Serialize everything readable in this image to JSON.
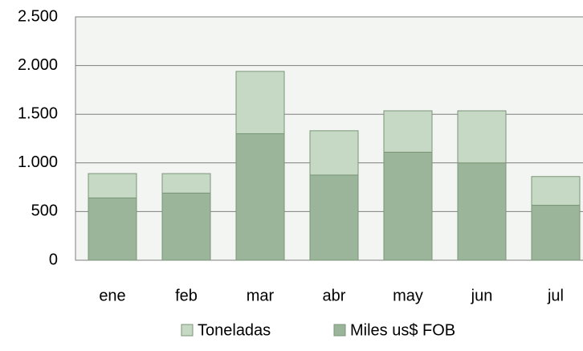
{
  "chart_data": {
    "type": "stacked_bar",
    "categories": [
      "ene",
      "feb",
      "mar",
      "abr",
      "may",
      "jun",
      "jul"
    ],
    "series": [
      {
        "name": "Toneladas",
        "color": "#c6d9c4",
        "values": [
          250,
          200,
          640,
          455,
          425,
          535,
          295
        ]
      },
      {
        "name": "Miles us$ FOB",
        "color": "#9bb59a",
        "values": [
          640,
          690,
          1300,
          875,
          1110,
          1000,
          565
        ]
      }
    ],
    "ylim": [
      0,
      2500
    ],
    "yticks": [
      0,
      500,
      {
        "value": 1000,
        "label": "1.000"
      },
      {
        "value": 1500,
        "label": "1.500"
      },
      {
        "value": 2000,
        "label": "2.000"
      },
      {
        "value": 2500,
        "label": "2.500"
      }
    ],
    "grid": true,
    "legend": "bottom"
  }
}
